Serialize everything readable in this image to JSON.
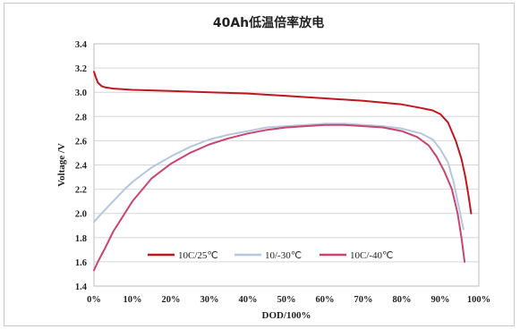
{
  "chart_data": {
    "type": "line",
    "title": "40Ah低温倍率放电",
    "xlabel": "DOD/100%",
    "ylabel": "Voltage /V",
    "xlim": [
      0,
      100
    ],
    "ylim": [
      1.4,
      3.4
    ],
    "x_ticks": [
      "0%",
      "10%",
      "20%",
      "30%",
      "40%",
      "50%",
      "60%",
      "70%",
      "80%",
      "90%",
      "100%"
    ],
    "y_ticks": [
      "1.4",
      "1.6",
      "1.8",
      "2.0",
      "2.2",
      "2.4",
      "2.6",
      "2.8",
      "3.0",
      "3.2",
      "3.4"
    ],
    "grid": "horizontal",
    "legend_position": "bottom-center",
    "series": [
      {
        "name": "10C/25℃",
        "color": "#c0171f",
        "points": [
          [
            0,
            3.17
          ],
          [
            0.5,
            3.12
          ],
          [
            1,
            3.08
          ],
          [
            2,
            3.05
          ],
          [
            3,
            3.04
          ],
          [
            5,
            3.03
          ],
          [
            10,
            3.02
          ],
          [
            20,
            3.01
          ],
          [
            30,
            3.0
          ],
          [
            40,
            2.99
          ],
          [
            50,
            2.97
          ],
          [
            60,
            2.95
          ],
          [
            70,
            2.93
          ],
          [
            80,
            2.9
          ],
          [
            85,
            2.87
          ],
          [
            88,
            2.85
          ],
          [
            90,
            2.82
          ],
          [
            92,
            2.75
          ],
          [
            94,
            2.6
          ],
          [
            95.5,
            2.45
          ],
          [
            96.5,
            2.3
          ],
          [
            97.3,
            2.15
          ],
          [
            98,
            2.0
          ]
        ]
      },
      {
        "name": "10/-30℃",
        "color": "#b4c6e0",
        "points": [
          [
            0,
            1.93
          ],
          [
            2,
            2.0
          ],
          [
            5,
            2.1
          ],
          [
            8,
            2.2
          ],
          [
            10,
            2.26
          ],
          [
            15,
            2.38
          ],
          [
            20,
            2.47
          ],
          [
            25,
            2.55
          ],
          [
            30,
            2.61
          ],
          [
            35,
            2.65
          ],
          [
            40,
            2.68
          ],
          [
            45,
            2.71
          ],
          [
            50,
            2.72
          ],
          [
            55,
            2.73
          ],
          [
            60,
            2.74
          ],
          [
            65,
            2.74
          ],
          [
            70,
            2.73
          ],
          [
            75,
            2.72
          ],
          [
            80,
            2.7
          ],
          [
            85,
            2.66
          ],
          [
            88,
            2.61
          ],
          [
            90,
            2.53
          ],
          [
            92,
            2.42
          ],
          [
            93.5,
            2.25
          ],
          [
            94.5,
            2.1
          ],
          [
            95.5,
            1.95
          ],
          [
            96,
            1.87
          ]
        ]
      },
      {
        "name": "10C/-40℃",
        "color": "#c8466d",
        "points": [
          [
            0,
            1.53
          ],
          [
            1,
            1.6
          ],
          [
            3,
            1.72
          ],
          [
            5,
            1.85
          ],
          [
            8,
            2.0
          ],
          [
            10,
            2.1
          ],
          [
            15,
            2.29
          ],
          [
            20,
            2.41
          ],
          [
            25,
            2.5
          ],
          [
            30,
            2.57
          ],
          [
            35,
            2.62
          ],
          [
            40,
            2.66
          ],
          [
            45,
            2.69
          ],
          [
            50,
            2.71
          ],
          [
            55,
            2.72
          ],
          [
            60,
            2.73
          ],
          [
            65,
            2.73
          ],
          [
            70,
            2.72
          ],
          [
            75,
            2.71
          ],
          [
            80,
            2.68
          ],
          [
            84,
            2.63
          ],
          [
            87,
            2.56
          ],
          [
            89,
            2.47
          ],
          [
            91,
            2.35
          ],
          [
            93,
            2.2
          ],
          [
            94.5,
            2.0
          ],
          [
            95.5,
            1.8
          ],
          [
            96.3,
            1.6
          ]
        ]
      }
    ]
  }
}
